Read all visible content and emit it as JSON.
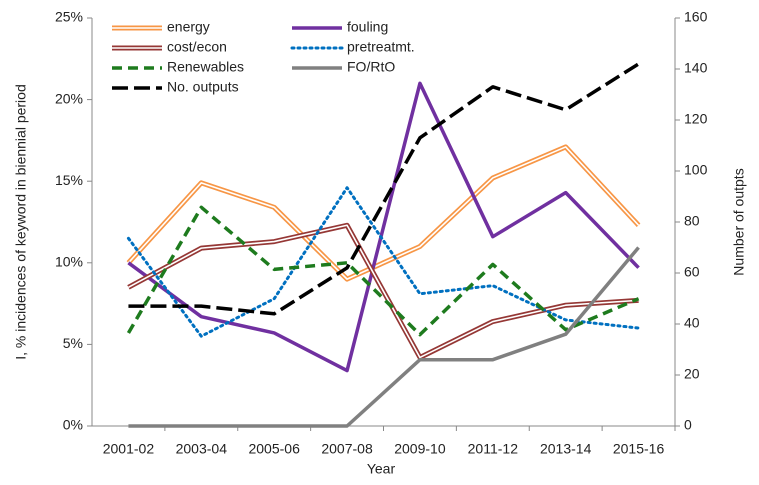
{
  "chart_data": {
    "type": "line",
    "xlabel": "Year",
    "ylabel": "I, % incidences of keyword in biennial period",
    "y2label": "Number of outpts",
    "categories": [
      "2001-02",
      "2003-04",
      "2005-06",
      "2007-08",
      "2009-10",
      "2011-12",
      "2013-14",
      "2015-16"
    ],
    "ylim": [
      0,
      25
    ],
    "yticks": [
      {
        "value": 0,
        "label": "0%"
      },
      {
        "value": 5,
        "label": "5%"
      },
      {
        "value": 10,
        "label": "10%"
      },
      {
        "value": 15,
        "label": "15%"
      },
      {
        "value": 20,
        "label": "20%"
      },
      {
        "value": 25,
        "label": "25%"
      }
    ],
    "y2lim": [
      0,
      160
    ],
    "y2ticks": [
      0,
      20,
      40,
      60,
      80,
      100,
      120,
      140,
      160
    ],
    "legend": "upper left",
    "series": [
      {
        "name": "energy",
        "color": "#f79646",
        "style": "double",
        "values": [
          10.0,
          14.9,
          13.4,
          9.0,
          11.0,
          15.2,
          17.1,
          12.3
        ]
      },
      {
        "name": "fouling",
        "color": "#7030a0",
        "style": "solid",
        "values": [
          10.0,
          6.7,
          5.7,
          3.4,
          21.0,
          11.6,
          14.3,
          9.7
        ]
      },
      {
        "name": "cost/econ",
        "color": "#953735",
        "style": "double",
        "values": [
          8.5,
          10.9,
          11.3,
          12.3,
          4.2,
          6.4,
          7.4,
          7.7
        ]
      },
      {
        "name": "pretreatmt.",
        "color": "#0070c0",
        "style": "dotted",
        "values": [
          11.5,
          5.5,
          7.8,
          14.6,
          8.1,
          8.6,
          6.5,
          6.0
        ]
      },
      {
        "name": "Renewables",
        "color": "#1e7b1e",
        "style": "dashed",
        "values": [
          5.7,
          13.4,
          9.6,
          10.0,
          5.6,
          9.9,
          5.9,
          7.8
        ]
      },
      {
        "name": "FO/RtO",
        "color": "#808080",
        "style": "solid",
        "axis": "y2",
        "values": [
          0,
          0,
          0,
          0,
          26,
          26,
          36,
          70
        ]
      },
      {
        "name": "No. outputs",
        "color": "#000000",
        "style": "longdash",
        "axis": "y2",
        "values": [
          47,
          47,
          44,
          62,
          113,
          133,
          124,
          142
        ]
      }
    ]
  }
}
